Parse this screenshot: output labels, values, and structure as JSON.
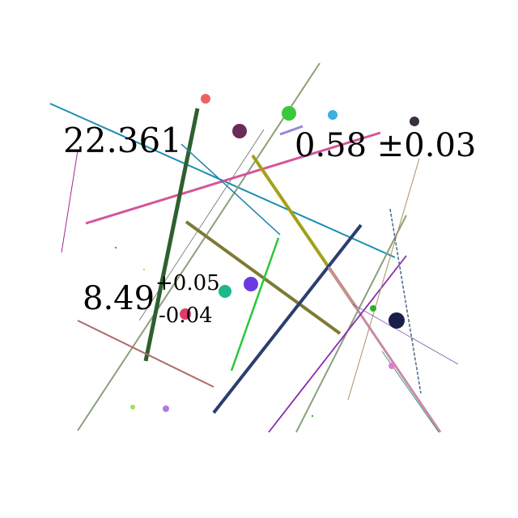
{
  "labels": {
    "value_a": "22.361",
    "value_b": "0.58 ±0.03",
    "value_c_main": "8.49",
    "value_c_plus": "+0.05",
    "value_c_minus": "-0.04"
  },
  "palette": {
    "teal": "#1a8fb0",
    "olive": "#8aa07a",
    "pink": "#d4559a",
    "dark_green": "#2f5f2f",
    "navy": "#2a3f6e",
    "mustard": "#a3a01a",
    "khaki": "#7d7a35",
    "purple": "#8a2ab0",
    "rose": "#b06a6a",
    "green": "#28c83a",
    "magenta": "#a02a9a",
    "lavender": "#9b86d6"
  }
}
